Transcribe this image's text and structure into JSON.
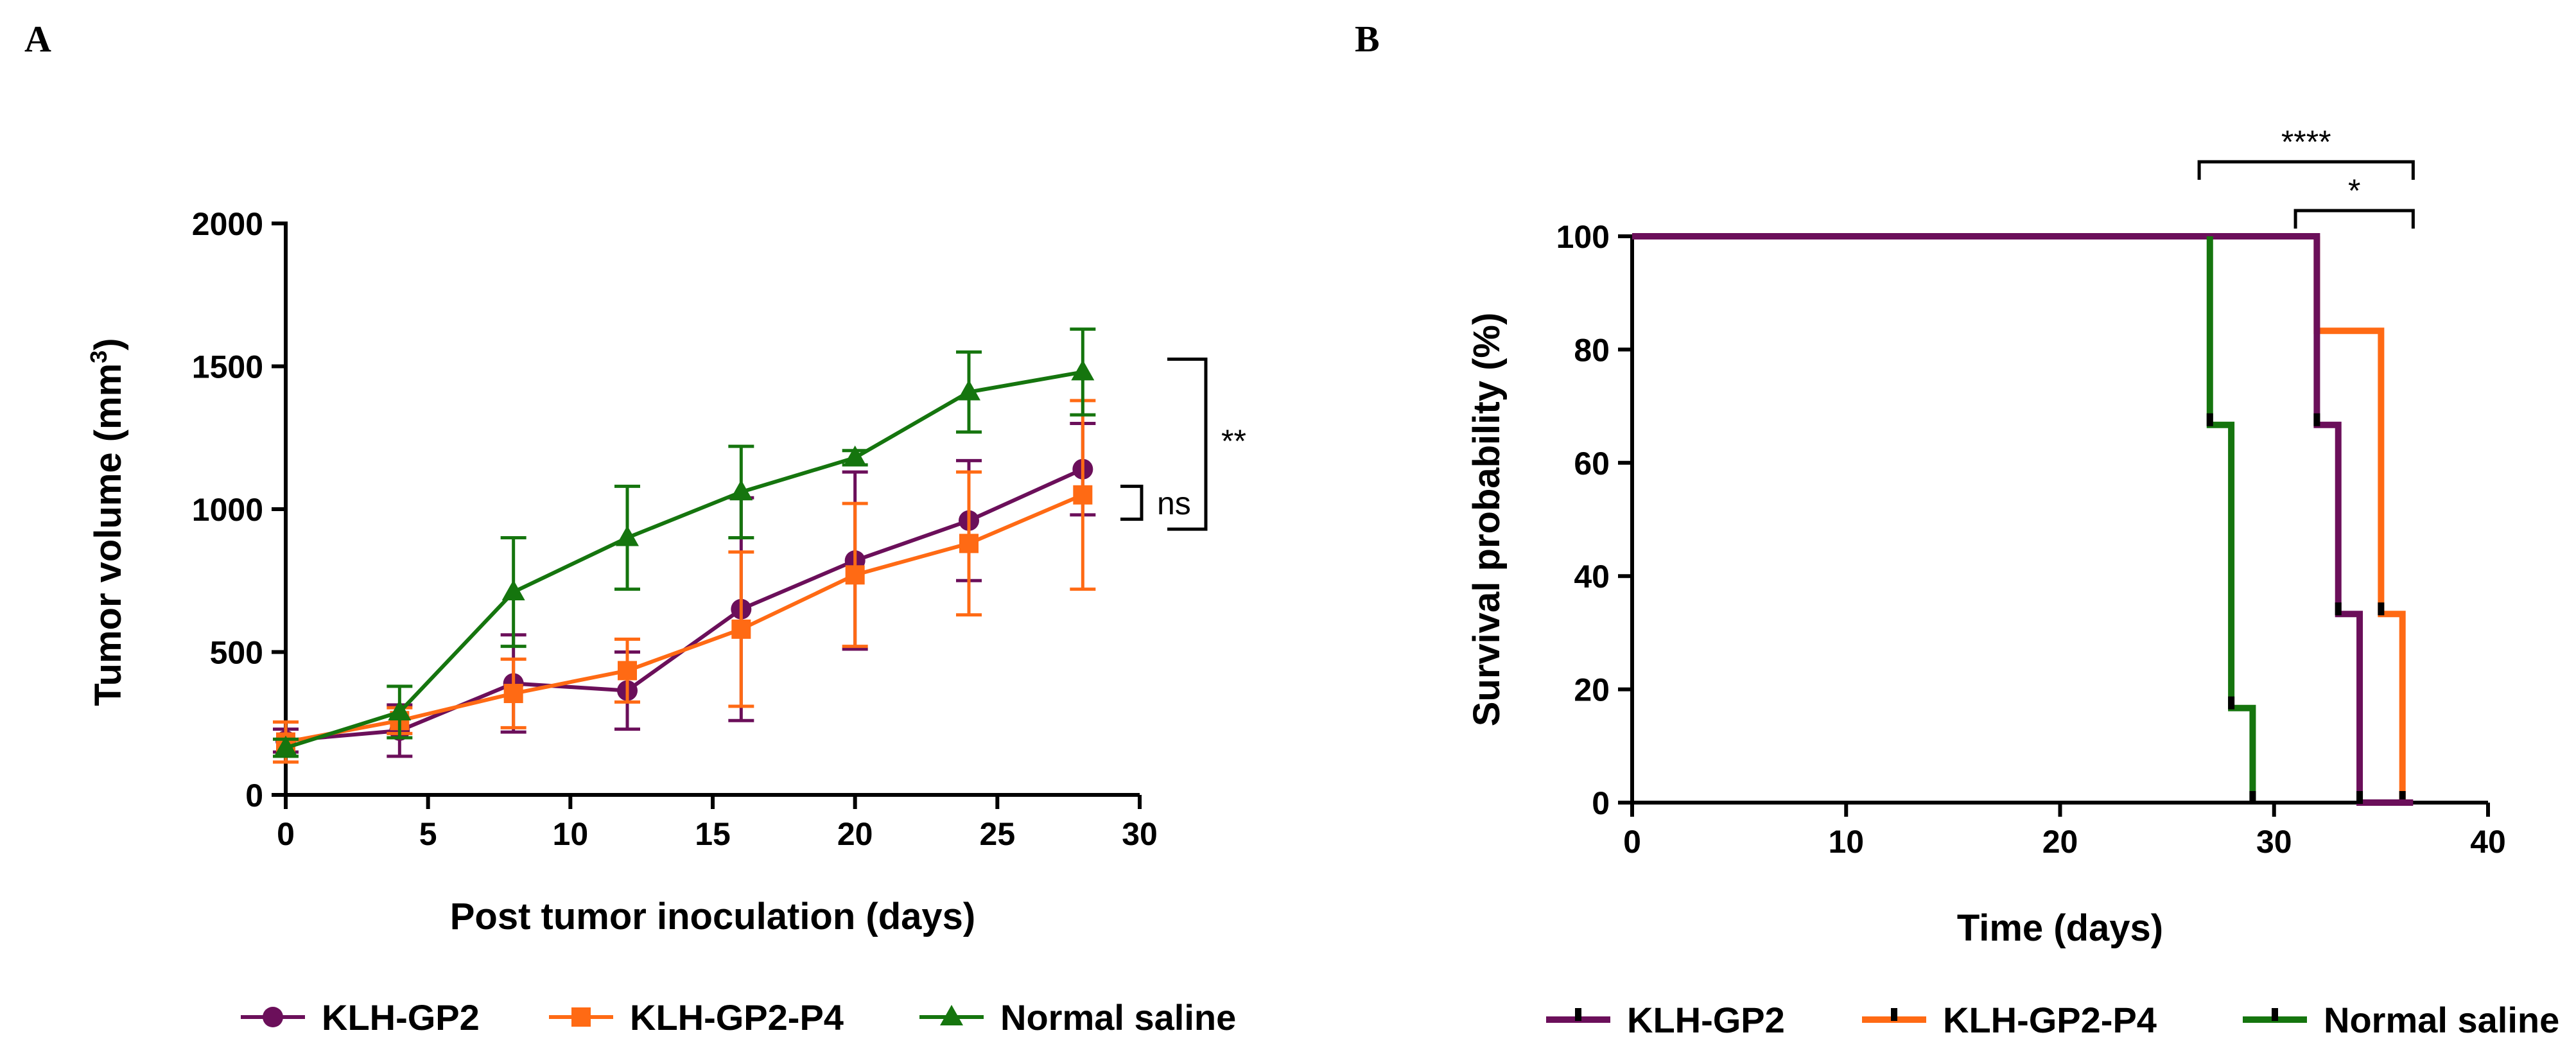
{
  "panels": {
    "a_label": "A",
    "b_label": "B"
  },
  "chart_data": [
    {
      "id": "A",
      "type": "line",
      "title": "",
      "xlabel": "Post tumor inoculation (days)",
      "ylabel_main": "Tumor volume (mm",
      "ylabel_sup": "3",
      "ylabel_end": ")",
      "xlim": [
        0,
        30
      ],
      "ylim": [
        0,
        2000
      ],
      "xticks": [
        0,
        5,
        10,
        15,
        20,
        25,
        30
      ],
      "yticks": [
        0,
        500,
        1000,
        1500,
        2000
      ],
      "grid": false,
      "legend_position": "bottom",
      "x": [
        0,
        4,
        8,
        12,
        16,
        20,
        24,
        28
      ],
      "series": [
        {
          "name": "KLH-GP2",
          "color": "#6b0f5a",
          "marker": "circle",
          "values": [
            190,
            225,
            390,
            365,
            650,
            820,
            960,
            1140
          ],
          "errors": [
            40,
            90,
            170,
            135,
            390,
            310,
            210,
            160
          ]
        },
        {
          "name": "KLH-GP2-P4",
          "color": "#ff6a14",
          "marker": "square",
          "values": [
            185,
            260,
            355,
            435,
            580,
            770,
            880,
            1050
          ],
          "errors": [
            70,
            45,
            120,
            110,
            270,
            250,
            250,
            330
          ]
        },
        {
          "name": "Normal saline",
          "color": "#15750e",
          "marker": "triangle",
          "values": [
            165,
            290,
            710,
            900,
            1060,
            1180,
            1410,
            1480
          ],
          "errors": [
            30,
            90,
            190,
            180,
            160,
            25,
            140,
            150
          ]
        }
      ],
      "annotations": [
        {
          "text": "ns",
          "between": [
            "KLH-GP2",
            "KLH-GP2-P4"
          ]
        },
        {
          "text": "**",
          "between": [
            "KLH-GP2-P4",
            "Normal saline"
          ]
        }
      ]
    },
    {
      "id": "B",
      "type": "line",
      "subtype": "survival-step",
      "title": "",
      "xlabel": "Time (days)",
      "ylabel": "Survival probability (%)",
      "xlim": [
        0,
        40
      ],
      "ylim": [
        0,
        100
      ],
      "xticks": [
        0,
        10,
        20,
        30,
        40
      ],
      "yticks": [
        0,
        20,
        40,
        60,
        80,
        100
      ],
      "grid": false,
      "legend_position": "bottom",
      "series": [
        {
          "name": "KLH-GP2",
          "color": "#6b0f5a",
          "steps": [
            [
              0,
              100
            ],
            [
              32,
              100
            ],
            [
              32,
              66.7
            ],
            [
              33,
              66.7
            ],
            [
              33,
              33.3
            ],
            [
              34,
              33.3
            ],
            [
              34,
              0
            ],
            [
              36.5,
              0
            ]
          ],
          "censor_ticks": [
            [
              32,
              66.7
            ],
            [
              33,
              33.3
            ],
            [
              34,
              0
            ]
          ]
        },
        {
          "name": "KLH-GP2-P4",
          "color": "#ff6a14",
          "steps": [
            [
              32,
              100
            ],
            [
              32,
              83.3
            ],
            [
              35,
              83.3
            ],
            [
              35,
              33.3
            ],
            [
              36,
              33.3
            ],
            [
              36,
              0
            ]
          ],
          "censor_ticks": [
            [
              35,
              33.3
            ],
            [
              36,
              0
            ]
          ]
        },
        {
          "name": "Normal saline",
          "color": "#15750e",
          "steps": [
            [
              27,
              100
            ],
            [
              27,
              66.7
            ],
            [
              28,
              66.7
            ],
            [
              28,
              16.7
            ],
            [
              29,
              16.7
            ],
            [
              29,
              0
            ]
          ],
          "censor_ticks": [
            [
              27,
              66.7
            ],
            [
              28,
              16.7
            ],
            [
              29,
              0
            ]
          ]
        }
      ],
      "significance": [
        {
          "text": "****",
          "x1": 26.5,
          "x2": 36.5,
          "level": 1
        },
        {
          "text": "*",
          "x1": 31.0,
          "x2": 36.5,
          "level": 0
        }
      ]
    }
  ]
}
